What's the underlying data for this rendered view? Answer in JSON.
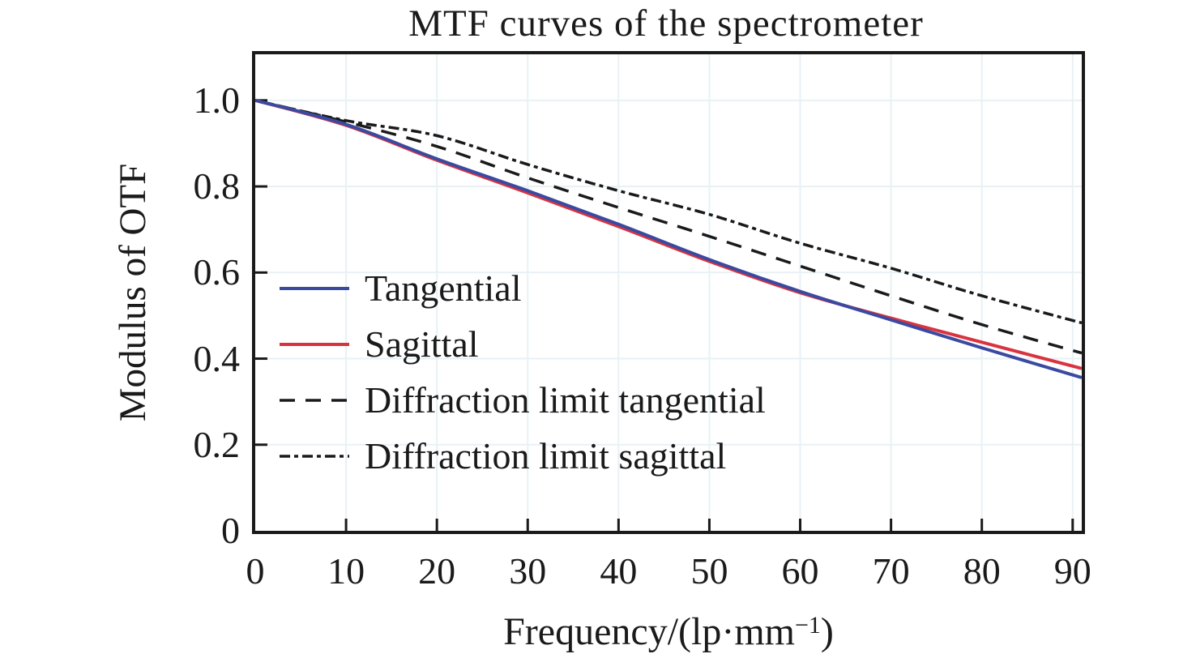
{
  "chart_data": {
    "type": "line",
    "title": "MTF curves of the spectrometer",
    "xlabel": "Frequency/(lp·mm⁻¹)",
    "xlabel_parts": {
      "pre": "Frequency/(lp·mm",
      "sup": "−1",
      "post": ")"
    },
    "ylabel": "Modulus of OTF",
    "xlim": [
      0,
      91
    ],
    "ylim": [
      0,
      1.107
    ],
    "xticks": [
      0,
      10,
      20,
      30,
      40,
      50,
      60,
      70,
      80,
      90
    ],
    "yticks": [
      0,
      0.2,
      0.4,
      0.6,
      0.8,
      1.0
    ],
    "ytick_labels": [
      "0",
      "0.2",
      "0.4",
      "0.6",
      "0.8",
      "1.0"
    ],
    "grid": "faint light-blue gridlines at tick positions",
    "legend_position": "inside upper-left area of plot",
    "x": [
      0,
      10,
      20,
      30,
      40,
      50,
      60,
      70,
      80,
      91
    ],
    "series": [
      {
        "name": "Tangential",
        "color": "#3a4aa0",
        "style": "solid",
        "values": [
          1.0,
          0.944,
          0.864,
          0.79,
          0.712,
          0.63,
          0.556,
          0.49,
          0.425,
          0.356
        ]
      },
      {
        "name": "Sagittal",
        "color": "#d93340",
        "style": "solid",
        "values": [
          1.0,
          0.942,
          0.861,
          0.785,
          0.707,
          0.626,
          0.553,
          0.494,
          0.438,
          0.377
        ]
      },
      {
        "name": "Diffraction limit tangential",
        "color": "#1a1a1a",
        "style": "dashed",
        "values": [
          1.0,
          0.95,
          0.893,
          0.82,
          0.751,
          0.684,
          0.615,
          0.546,
          0.479,
          0.413
        ]
      },
      {
        "name": "Diffraction limit sagittal",
        "color": "#1a1a1a",
        "style": "dashdot",
        "values": [
          1.0,
          0.953,
          0.918,
          0.851,
          0.79,
          0.735,
          0.668,
          0.61,
          0.546,
          0.483
        ]
      }
    ],
    "colors": {
      "text": "#1a1a1a",
      "axis": "#1a1a1a",
      "grid": "#e8f1f5"
    }
  }
}
